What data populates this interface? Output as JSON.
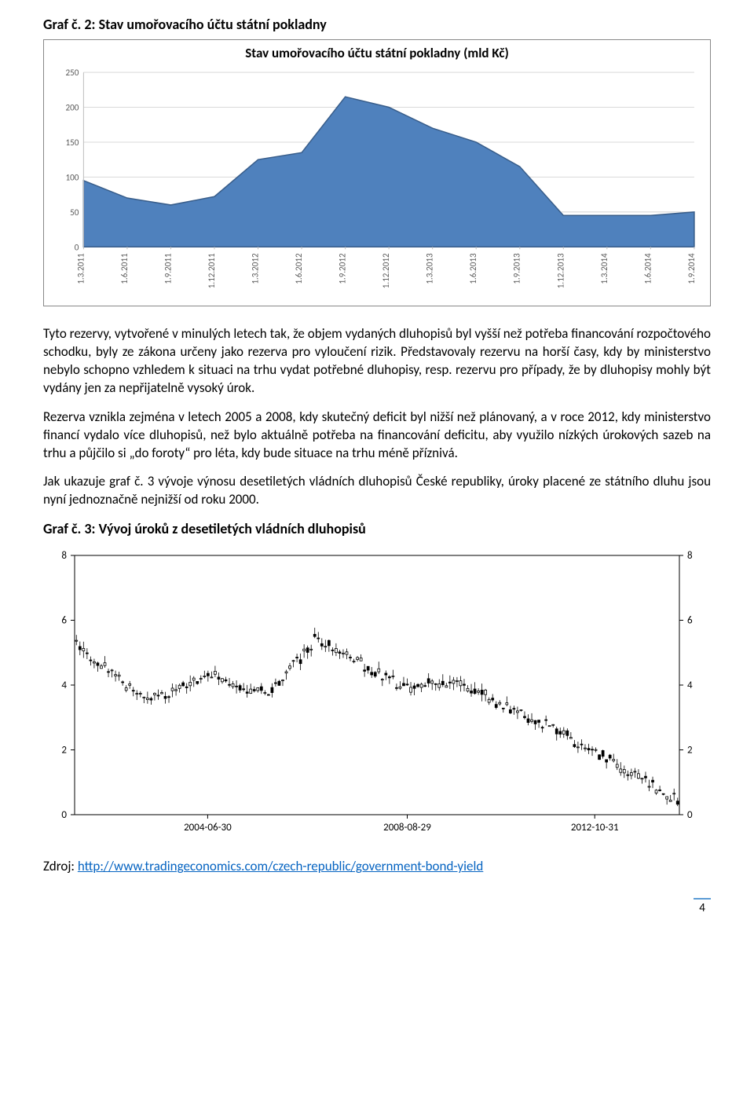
{
  "heading1": "Graf č. 2: Stav umořovacího účtu státní pokladny",
  "chart1": {
    "title": "Stav umořovacího účtu státní pokladny (mld Kč)",
    "type": "area",
    "categories": [
      "1.3.2011",
      "1.6.2011",
      "1.9.2011",
      "1.12.2011",
      "1.3.2012",
      "1.6.2012",
      "1.9.2012",
      "1.12.2012",
      "1.3.2013",
      "1.6.2013",
      "1.9.2013",
      "1.12.2013",
      "1.3.2014",
      "1.6.2014",
      "1.9.2014"
    ],
    "values": [
      95,
      70,
      60,
      72,
      125,
      135,
      215,
      200,
      170,
      150,
      115,
      45,
      45,
      45,
      50
    ],
    "ylim": [
      0,
      250
    ],
    "ytick_step": 50,
    "yticks": [
      "0",
      "50",
      "100",
      "150",
      "200",
      "250"
    ],
    "series_fill": "#4f81bd",
    "series_stroke": "#385d8a",
    "background_color": "#ffffff",
    "grid_color": "#d9d9d9",
    "label_color": "#595959",
    "label_fontsize": 11,
    "title_fontsize": 17
  },
  "para1": "Tyto rezervy, vytvořené v minulých letech tak, že objem vydaných dluhopisů byl vyšší než potřeba financování rozpočtového schodku, byly ze zákona určeny jako rezerva pro vyloučení rizik. Představovaly rezervu na horší časy, kdy by ministerstvo nebylo schopno vzhledem k situaci na trhu vydat potřebné dluhopisy, resp. rezervu pro případy, že by dluhopisy mohly být vydány jen za nepřijatelně vysoký úrok.",
  "para2": "Rezerva vznikla zejména v letech 2005 a 2008, kdy skutečný deficit byl nižší než plánovaný, a v roce 2012, kdy ministerstvo financí vydalo více dluhopisů, než bylo aktuálně potřeba na financování deficitu, aby využilo nízkých úrokových sazeb na trhu a půjčilo si „do foroty“ pro léta, kdy bude situace na trhu méně příznivá.",
  "para3": "Jak ukazuje graf č. 3 vývoje výnosu desetiletých vládních dluhopisů České republiky, úroky placené ze státního dluhu jsou nyní jednoznačně nejnižší od roku 2000.",
  "heading2": "Graf č. 3: Vývoj úroků z desetiletých vládních dluhopisů",
  "chart2": {
    "type": "candlestick",
    "ylim": [
      0,
      8
    ],
    "ytick_step": 2,
    "yticks_left": [
      "0",
      "2",
      "4",
      "6",
      "8"
    ],
    "yticks_right": [
      "0",
      "2",
      "4",
      "6",
      "8"
    ],
    "xticks": [
      "2004-06-30",
      "2008-08-29",
      "2012-10-31"
    ],
    "background_color": "#ffffff",
    "axis_color": "#000000",
    "up_fill": "#ffffff",
    "down_fill": "#000000",
    "stroke": "#000000",
    "label_fontsize": 13
  },
  "source_label": "Zdroj: ",
  "source_url_text": "http://www.tradingeconomics.com/czech-republic/government-bond-yield",
  "pagenum": "4"
}
